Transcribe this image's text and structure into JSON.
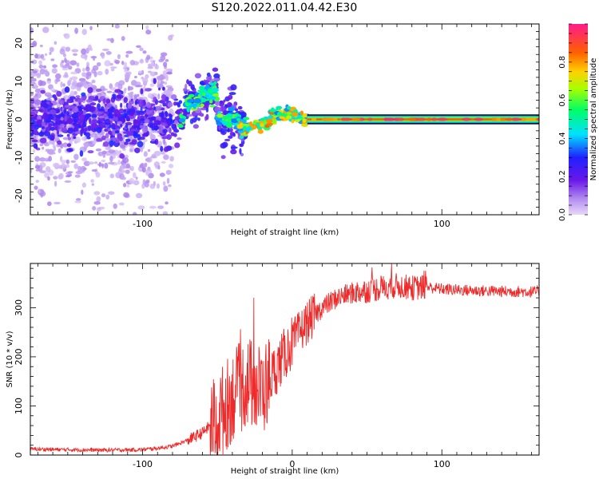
{
  "title": "S120.2022.011.04.42.E30",
  "chart_data": [
    {
      "type": "heatmap",
      "xlabel": "Height of straight line (km)",
      "ylabel": "Frequency (Hz)",
      "xlim": [
        -175,
        165
      ],
      "ylim": [
        -25,
        25
      ],
      "xticks": [
        -100,
        100
      ],
      "yticks": [
        -20,
        -10,
        0,
        10,
        20
      ],
      "colorbar": {
        "label": "Normalized spectral amplitude",
        "ticks": [
          "0.0",
          "0.2",
          "0.4",
          "0.6",
          "0.8"
        ],
        "range": [
          0,
          1
        ]
      },
      "description_of_energy": {
        "dominant_frequency_hz": 0,
        "coherent_from_km": -35,
        "scattered_until_km": -40,
        "peak_band": "0 Hz line from about 10 km to 165 km"
      },
      "grid": false
    },
    {
      "type": "line",
      "xlabel": "Height of straight line (km)",
      "ylabel": "SNR (10 * v/v)",
      "xlim": [
        -175,
        165
      ],
      "ylim": [
        0,
        390
      ],
      "xticks": [
        -100,
        0,
        100
      ],
      "yticks": [
        0,
        100,
        200,
        300
      ],
      "series": [
        {
          "color": "#ee2b2b",
          "x": [
            -175,
            -150,
            -125,
            -100,
            -90,
            -80,
            -70,
            -60,
            -50,
            -40,
            -30,
            -20,
            -10,
            0,
            10,
            20,
            30,
            40,
            50,
            60,
            70,
            80,
            90,
            100,
            110,
            120,
            130,
            140,
            150,
            165
          ],
          "y": [
            12,
            11,
            10,
            11,
            14,
            18,
            30,
            45,
            75,
            120,
            150,
            130,
            180,
            230,
            270,
            300,
            320,
            330,
            335,
            340,
            345,
            340,
            342,
            338,
            336,
            335,
            334,
            333,
            333,
            332
          ]
        }
      ],
      "grid": false
    }
  ]
}
